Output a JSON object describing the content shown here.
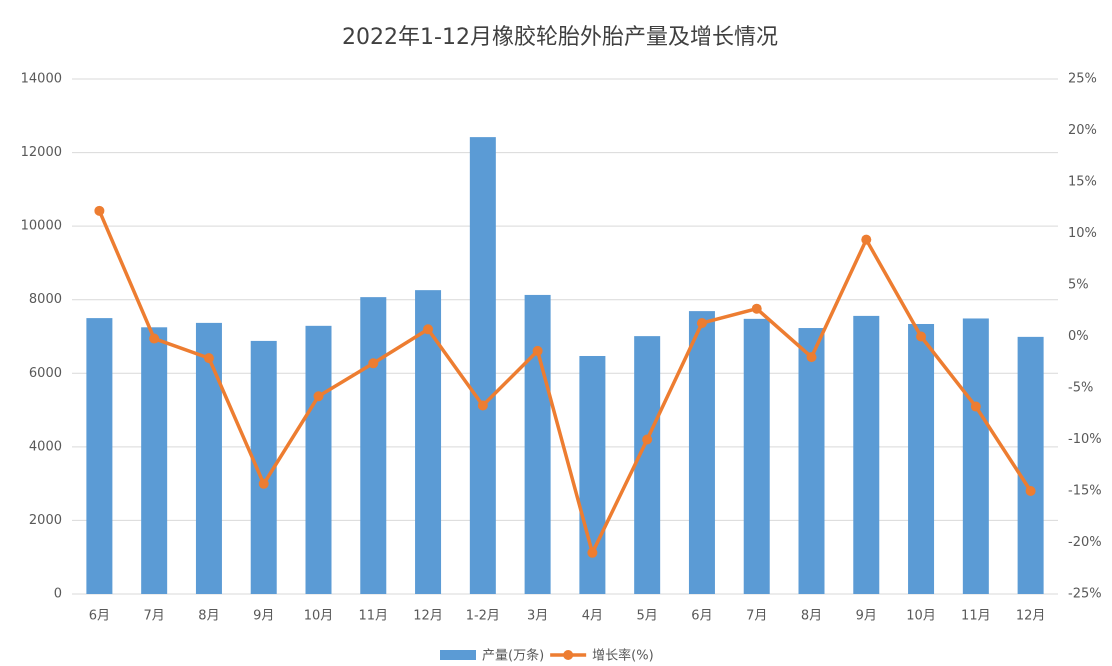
{
  "chart_data": {
    "type": "bar_line",
    "title": "2022年1-12月橡胶轮胎外胎产量及增长情况",
    "categories": [
      "6月",
      "7月",
      "8月",
      "9月",
      "10月",
      "11月",
      "12月",
      "1-2月",
      "3月",
      "4月",
      "5月",
      "6月",
      "7月",
      "8月",
      "9月",
      "10月",
      "11月",
      "12月"
    ],
    "series": [
      {
        "name": "产量(万条)",
        "type": "bar",
        "color": "#5b9bd5",
        "values": [
          7500,
          7250,
          7370,
          6880,
          7290,
          8070,
          8260,
          12420,
          8130,
          6470,
          7010,
          7690,
          7480,
          7230,
          7560,
          7340,
          7490,
          6990
        ]
      },
      {
        "name": "增长率(%)",
        "type": "line",
        "axis": "y2",
        "color": "#ed7d31",
        "values": [
          12.2,
          -0.2,
          -2.1,
          -14.3,
          -5.8,
          -2.6,
          0.7,
          -6.7,
          -1.4,
          -21.0,
          -10.0,
          1.3,
          2.7,
          -2.0,
          9.4,
          0.0,
          -6.8,
          -15.0
        ]
      }
    ],
    "ylim": [
      0,
      14000
    ],
    "yticks": [
      0,
      2000,
      4000,
      6000,
      8000,
      10000,
      12000,
      14000
    ],
    "y2lim": [
      -25,
      25
    ],
    "y2ticks": [
      {
        "value": -25,
        "label": "-25%"
      },
      {
        "value": -20,
        "label": "-20%"
      },
      {
        "value": -15,
        "label": "-15%"
      },
      {
        "value": -10,
        "label": "-10%"
      },
      {
        "value": -5,
        "label": "-5%"
      },
      {
        "value": 0,
        "label": "0%"
      },
      {
        "value": 5,
        "label": "5%"
      },
      {
        "value": 10,
        "label": "10%"
      },
      {
        "value": 15,
        "label": "15%"
      },
      {
        "value": 20,
        "label": "20%"
      },
      {
        "value": 25,
        "label": "25%"
      }
    ],
    "grid": true,
    "legend": "bottom"
  }
}
